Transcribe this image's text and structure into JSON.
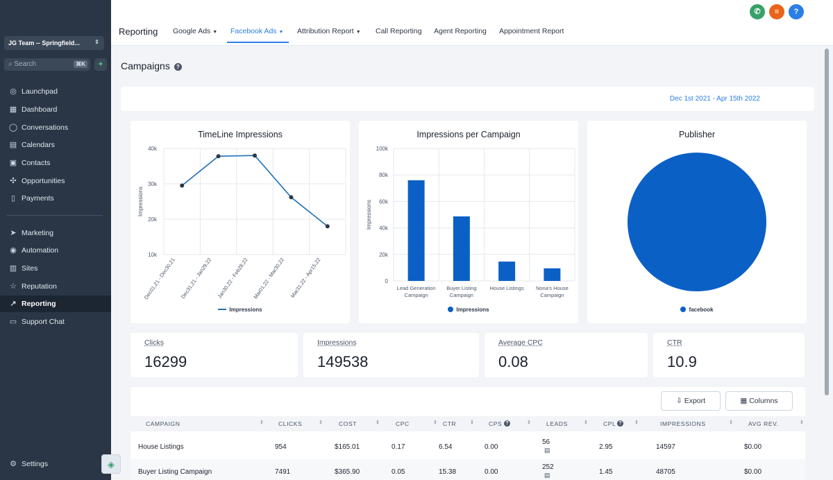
{
  "sidebar": {
    "location": "JG Team -- Springfield...",
    "search_placeholder": "Search",
    "search_shortcut": "⌘K",
    "items": [
      {
        "label": "Launchpad",
        "icon": "rocket-icon"
      },
      {
        "label": "Dashboard",
        "icon": "grid-icon"
      },
      {
        "label": "Conversations",
        "icon": "chat-icon"
      },
      {
        "label": "Calendars",
        "icon": "calendar-icon"
      },
      {
        "label": "Contacts",
        "icon": "contacts-icon"
      },
      {
        "label": "Opportunities",
        "icon": "opportunities-icon"
      },
      {
        "label": "Payments",
        "icon": "payments-icon"
      },
      {
        "label": "Marketing",
        "icon": "send-icon"
      },
      {
        "label": "Automation",
        "icon": "automation-icon"
      },
      {
        "label": "Sites",
        "icon": "sites-icon"
      },
      {
        "label": "Reputation",
        "icon": "star-icon"
      },
      {
        "label": "Reporting",
        "icon": "trend-icon",
        "active": true
      },
      {
        "label": "Support Chat",
        "icon": "support-icon"
      }
    ],
    "settings_label": "Settings"
  },
  "topbar": {
    "title": "Reporting",
    "tabs": [
      "Google Ads",
      "Facebook Ads",
      "Attribution Report",
      "Call Reporting",
      "Agent Reporting",
      "Appointment Report"
    ],
    "active_tab": "Facebook Ads"
  },
  "page": {
    "title": "Campaigns",
    "date_range": "Dec 1st 2021 - Apr 15th 2022"
  },
  "colors": {
    "accent": "#2b7ee6",
    "bar": "#0b60c5",
    "line": "#1f6fb9"
  },
  "chart_data": [
    {
      "type": "line",
      "title": "TimeLine Impressions",
      "ylabel": "Impressions",
      "x": [
        "Dec01,21 - Dec30,21",
        "Dec31,21 - Jan29,22",
        "Jan30,22 - Feb28,22",
        "Mar01,22 - Mar30,22",
        "Mar31,22 - Apr15,22"
      ],
      "series": [
        {
          "name": "Impressions",
          "values": [
            29500,
            37800,
            38000,
            26200,
            18000
          ]
        }
      ],
      "ylim": [
        10000,
        40000
      ],
      "yticks": [
        "10k",
        "20k",
        "30k",
        "40k"
      ],
      "grid": true,
      "legend": "bottom"
    },
    {
      "type": "bar",
      "title": "Impressions per Campaign",
      "ylabel": "Impressions",
      "categories": [
        "Lead Generation Campaign",
        "Buyer Listing Campaign",
        "House Listings",
        "Nona's House Campaign"
      ],
      "series": [
        {
          "name": "Impressions",
          "values": [
            76000,
            48705,
            14597,
            9500
          ]
        }
      ],
      "ylim": [
        0,
        100000
      ],
      "yticks": [
        "0",
        "20k",
        "40k",
        "60k",
        "80k",
        "100k"
      ],
      "grid": true,
      "legend": "bottom"
    },
    {
      "type": "pie",
      "title": "Publisher",
      "slices": [
        {
          "label": "facebook",
          "value": 149538
        }
      ],
      "legend": "bottom"
    }
  ],
  "stats": [
    {
      "label": "Clicks",
      "value": "16299"
    },
    {
      "label": "Impressions",
      "value": "149538"
    },
    {
      "label": "Average CPC",
      "value": "0.08"
    },
    {
      "label": "CTR",
      "value": "10.9"
    }
  ],
  "table": {
    "export_label": "Export",
    "columns_label": "Columns",
    "headers": [
      "CAMPAIGN",
      "CLICKS",
      "COST",
      "CPC",
      "CTR",
      "CPS",
      "LEADS",
      "CPL",
      "IMPRESSIONS",
      "AVG REV."
    ],
    "rows": [
      [
        "House Listings",
        "954",
        "$165.01",
        "0.17",
        "6.54",
        "0.00",
        "56",
        "2.95",
        "14597",
        "$0.00"
      ],
      [
        "Buyer Listing Campaign",
        "7491",
        "$365.90",
        "0.05",
        "15.38",
        "0.00",
        "252",
        "1.45",
        "48705",
        "$0.00"
      ]
    ]
  }
}
